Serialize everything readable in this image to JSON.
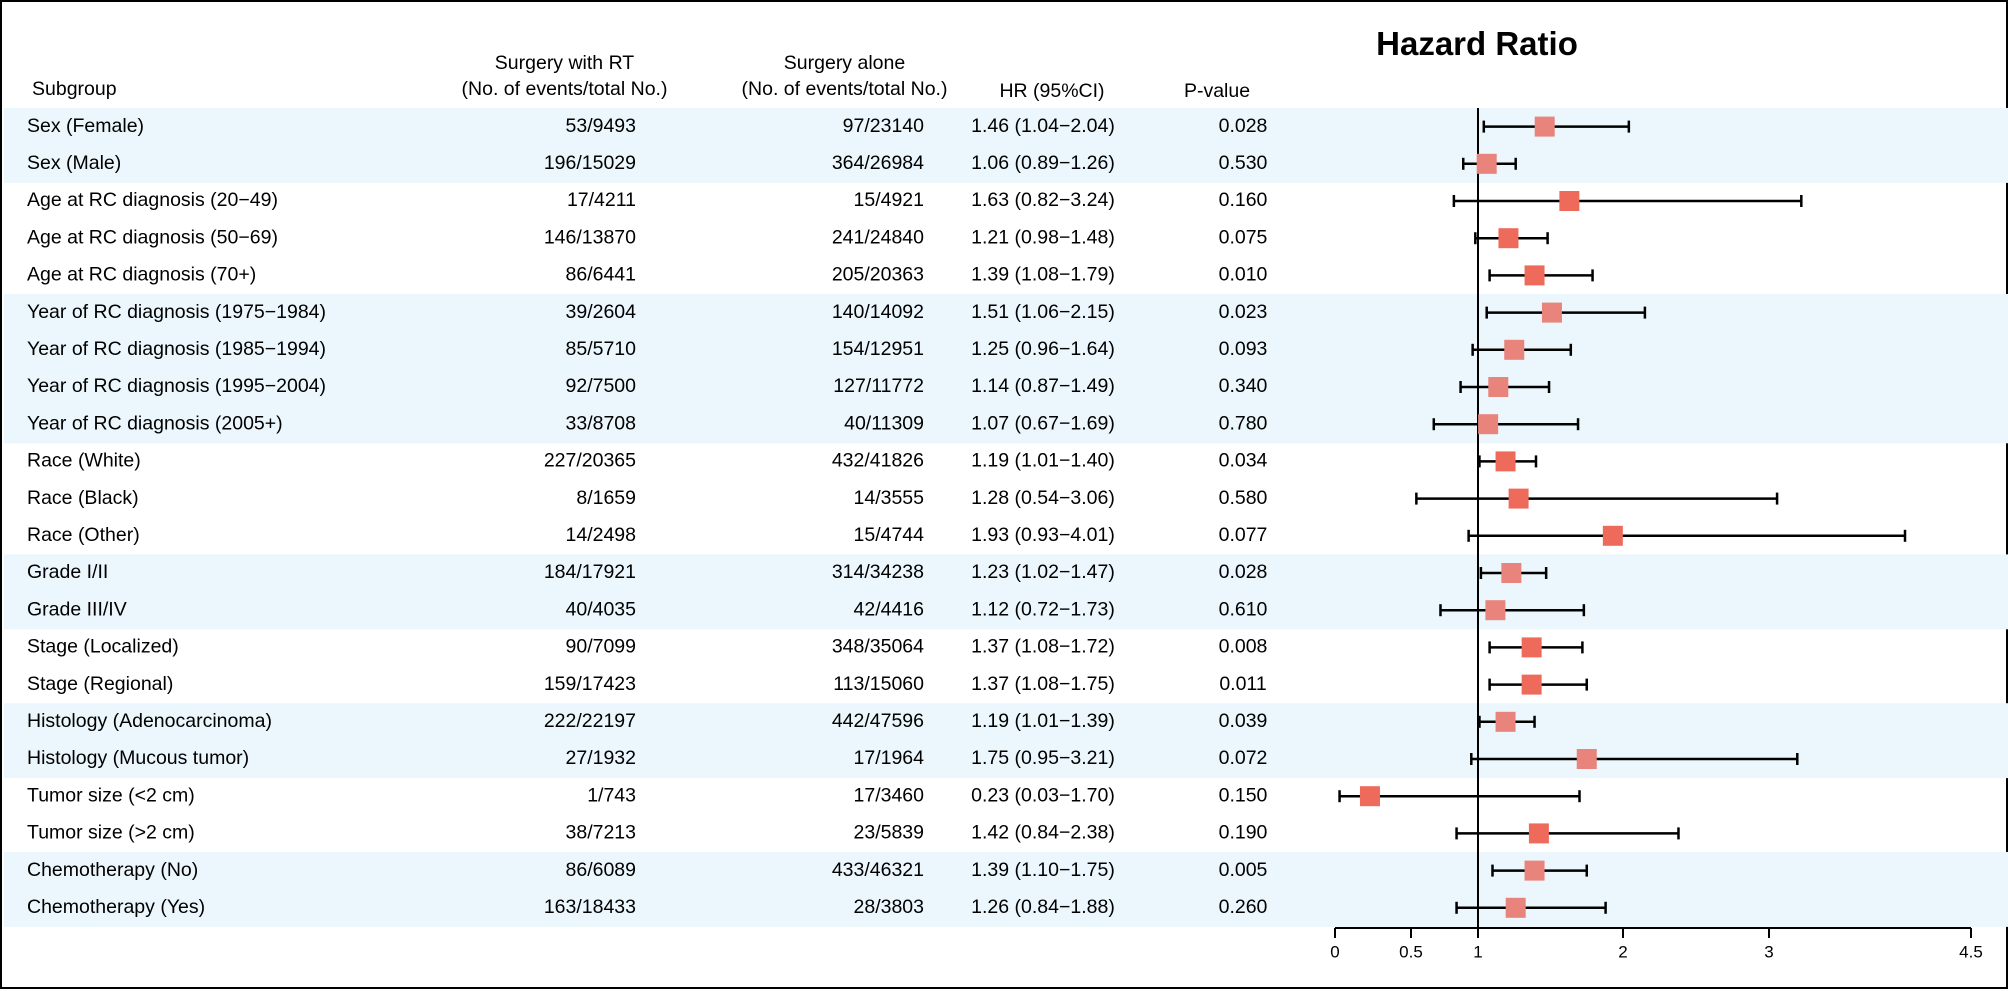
{
  "chart_data": {
    "type": "forest",
    "title": "Hazard Ratio",
    "columns": {
      "subgroup": "Subgroup",
      "rt": [
        "Surgery with RT",
        "(No. of events/total No.)"
      ],
      "alone": [
        "Surgery alone",
        "(No. of events/total No.)"
      ],
      "hr": "HR (95%CI)",
      "p": "P-value"
    },
    "x_ticks": [
      "0",
      "0.5",
      "1",
      "2",
      "3",
      "4.5"
    ],
    "reference_line": 1,
    "rows": [
      {
        "subgroup": "Sex (Female)",
        "rt": "53/9493",
        "alone": "97/23140",
        "hr_text": "1.46 (1.04−2.04)",
        "p": "0.028",
        "hr": 1.46,
        "lo": 1.04,
        "hi": 2.04,
        "shaded": true,
        "color": "#e8847c"
      },
      {
        "subgroup": "Sex (Male)",
        "rt": "196/15029",
        "alone": "364/26984",
        "hr_text": "1.06 (0.89−1.26)",
        "p": "0.530",
        "hr": 1.06,
        "lo": 0.89,
        "hi": 1.26,
        "shaded": true,
        "color": "#e8847c"
      },
      {
        "subgroup": "Age at RC diagnosis (20−49)",
        "rt": "17/4211",
        "alone": "15/4921",
        "hr_text": "1.63 (0.82−3.24)",
        "p": "0.160",
        "hr": 1.63,
        "lo": 0.82,
        "hi": 3.24,
        "shaded": false,
        "color": "#ee6b5c"
      },
      {
        "subgroup": "Age at RC diagnosis (50−69)",
        "rt": "146/13870",
        "alone": "241/24840",
        "hr_text": "1.21 (0.98−1.48)",
        "p": "0.075",
        "hr": 1.21,
        "lo": 0.98,
        "hi": 1.48,
        "shaded": false,
        "color": "#ee6b5c"
      },
      {
        "subgroup": "Age at RC diagnosis (70+)",
        "rt": "86/6441",
        "alone": "205/20363",
        "hr_text": "1.39 (1.08−1.79)",
        "p": "0.010",
        "hr": 1.39,
        "lo": 1.08,
        "hi": 1.79,
        "shaded": false,
        "color": "#ee6b5c"
      },
      {
        "subgroup": "Year of RC diagnosis (1975−1984)",
        "rt": "39/2604",
        "alone": "140/14092",
        "hr_text": "1.51 (1.06−2.15)",
        "p": "0.023",
        "hr": 1.51,
        "lo": 1.06,
        "hi": 2.15,
        "shaded": true,
        "color": "#e8847c"
      },
      {
        "subgroup": "Year of RC diagnosis (1985−1994)",
        "rt": "85/5710",
        "alone": "154/12951",
        "hr_text": "1.25 (0.96−1.64)",
        "p": "0.093",
        "hr": 1.25,
        "lo": 0.96,
        "hi": 1.64,
        "shaded": true,
        "color": "#e8847c"
      },
      {
        "subgroup": "Year of RC diagnosis (1995−2004)",
        "rt": "92/7500",
        "alone": "127/11772",
        "hr_text": "1.14 (0.87−1.49)",
        "p": "0.340",
        "hr": 1.14,
        "lo": 0.87,
        "hi": 1.49,
        "shaded": true,
        "color": "#e8847c"
      },
      {
        "subgroup": "Year of RC diagnosis (2005+)",
        "rt": "33/8708",
        "alone": "40/11309",
        "hr_text": "1.07 (0.67−1.69)",
        "p": "0.780",
        "hr": 1.07,
        "lo": 0.67,
        "hi": 1.69,
        "shaded": true,
        "color": "#e8847c"
      },
      {
        "subgroup": "Race (White)",
        "rt": "227/20365",
        "alone": "432/41826",
        "hr_text": "1.19 (1.01−1.40)",
        "p": "0.034",
        "hr": 1.19,
        "lo": 1.01,
        "hi": 1.4,
        "shaded": false,
        "color": "#ee6b5c"
      },
      {
        "subgroup": "Race (Black)",
        "rt": "8/1659",
        "alone": "14/3555",
        "hr_text": "1.28 (0.54−3.06)",
        "p": "0.580",
        "hr": 1.28,
        "lo": 0.54,
        "hi": 3.06,
        "shaded": false,
        "color": "#ee6b5c"
      },
      {
        "subgroup": "Race (Other)",
        "rt": "14/2498",
        "alone": "15/4744",
        "hr_text": "1.93 (0.93−4.01)",
        "p": "0.077",
        "hr": 1.93,
        "lo": 0.93,
        "hi": 4.01,
        "shaded": false,
        "color": "#ee6b5c"
      },
      {
        "subgroup": "Grade I/II",
        "rt": "184/17921",
        "alone": "314/34238",
        "hr_text": "1.23 (1.02−1.47)",
        "p": "0.028",
        "hr": 1.23,
        "lo": 1.02,
        "hi": 1.47,
        "shaded": true,
        "color": "#e8847c"
      },
      {
        "subgroup": "Grade III/IV",
        "rt": "40/4035",
        "alone": "42/4416",
        "hr_text": "1.12 (0.72−1.73)",
        "p": "0.610",
        "hr": 1.12,
        "lo": 0.72,
        "hi": 1.73,
        "shaded": true,
        "color": "#e8847c"
      },
      {
        "subgroup": "Stage (Localized)",
        "rt": "90/7099",
        "alone": "348/35064",
        "hr_text": "1.37 (1.08−1.72)",
        "p": "0.008",
        "hr": 1.37,
        "lo": 1.08,
        "hi": 1.72,
        "shaded": false,
        "color": "#ee6b5c"
      },
      {
        "subgroup": "Stage (Regional)",
        "rt": "159/17423",
        "alone": "113/15060",
        "hr_text": "1.37 (1.08−1.75)",
        "p": "0.011",
        "hr": 1.37,
        "lo": 1.08,
        "hi": 1.75,
        "shaded": false,
        "color": "#ee6b5c"
      },
      {
        "subgroup": "Histology (Adenocarcinoma)",
        "rt": "222/22197",
        "alone": "442/47596",
        "hr_text": "1.19 (1.01−1.39)",
        "p": "0.039",
        "hr": 1.19,
        "lo": 1.01,
        "hi": 1.39,
        "shaded": true,
        "color": "#e8847c"
      },
      {
        "subgroup": "Histology (Mucous tumor)",
        "rt": "27/1932",
        "alone": "17/1964",
        "hr_text": "1.75 (0.95−3.21)",
        "p": "0.072",
        "hr": 1.75,
        "lo": 0.95,
        "hi": 3.21,
        "shaded": true,
        "color": "#e8847c"
      },
      {
        "subgroup": "Tumor size (<2 cm)",
        "rt": "1/743",
        "alone": "17/3460",
        "hr_text": "0.23 (0.03−1.70)",
        "p": "0.150",
        "hr": 0.23,
        "lo": 0.03,
        "hi": 1.7,
        "shaded": false,
        "color": "#ee6b5c"
      },
      {
        "subgroup": "Tumor size (>2 cm)",
        "rt": "38/7213",
        "alone": "23/5839",
        "hr_text": "1.42 (0.84−2.38)",
        "p": "0.190",
        "hr": 1.42,
        "lo": 0.84,
        "hi": 2.38,
        "shaded": false,
        "color": "#ee6b5c"
      },
      {
        "subgroup": "Chemotherapy (No)",
        "rt": "86/6089",
        "alone": "433/46321",
        "hr_text": "1.39 (1.10−1.75)",
        "p": "0.005",
        "hr": 1.39,
        "lo": 1.1,
        "hi": 1.75,
        "shaded": true,
        "color": "#e8847c"
      },
      {
        "subgroup": "Chemotherapy (Yes)",
        "rt": "163/18433",
        "alone": "28/3803",
        "hr_text": "1.26 (0.84−1.88)",
        "p": "0.260",
        "hr": 1.26,
        "lo": 0.84,
        "hi": 1.88,
        "shaded": true,
        "color": "#e8847c"
      }
    ],
    "colors": {
      "band": "#ebf7fc",
      "axis": "#000000",
      "text": "#000000"
    }
  }
}
